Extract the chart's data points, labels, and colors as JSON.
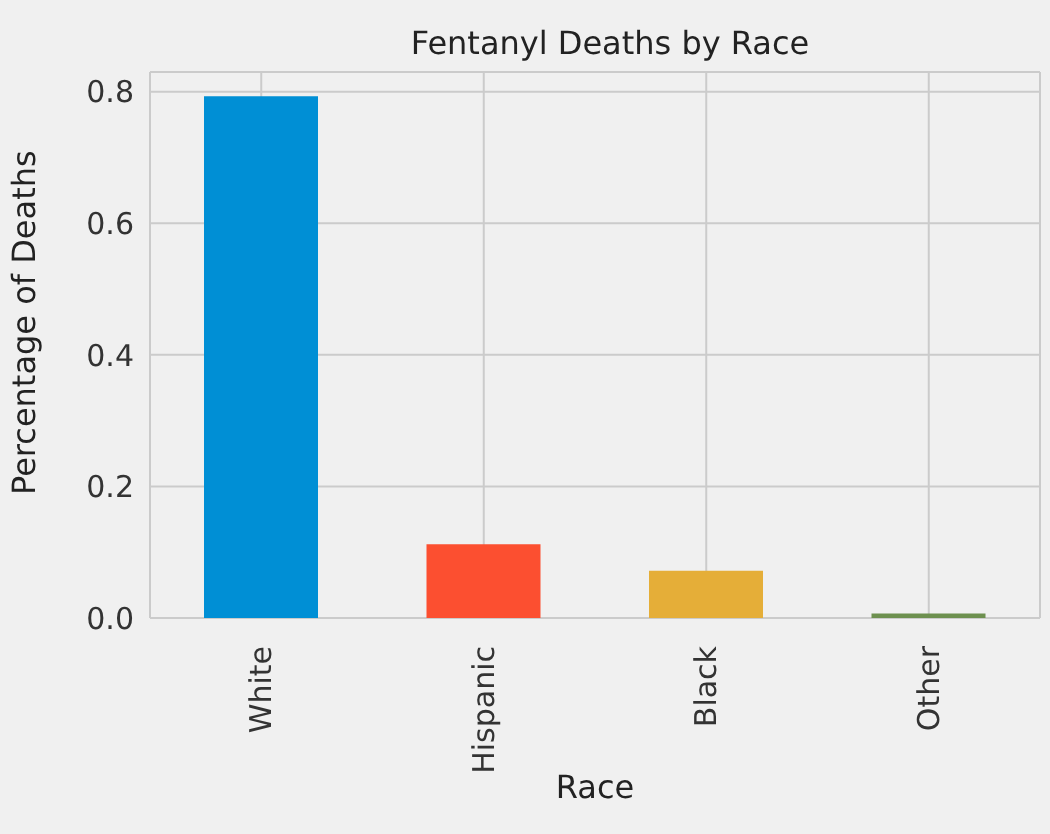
{
  "chart_data": {
    "type": "bar",
    "title": "Fentanyl Deaths by Race",
    "xlabel": "Race",
    "ylabel": "Percentage of Deaths",
    "categories": [
      "White",
      "Hispanic",
      "Black",
      "Other"
    ],
    "values": [
      0.793,
      0.112,
      0.072,
      0.007
    ],
    "colors": [
      "#008fd5",
      "#fc4f30",
      "#e5ae38",
      "#6d904f"
    ],
    "ylim": [
      0,
      0.83
    ],
    "yticks": [
      {
        "value": 0,
        "label": "0.0"
      },
      {
        "value": 0.2,
        "label": "0.2"
      },
      {
        "value": 0.4,
        "label": "0.4"
      },
      {
        "value": 0.6,
        "label": "0.6"
      },
      {
        "value": 0.8,
        "label": "0.8"
      }
    ],
    "grid": true
  }
}
